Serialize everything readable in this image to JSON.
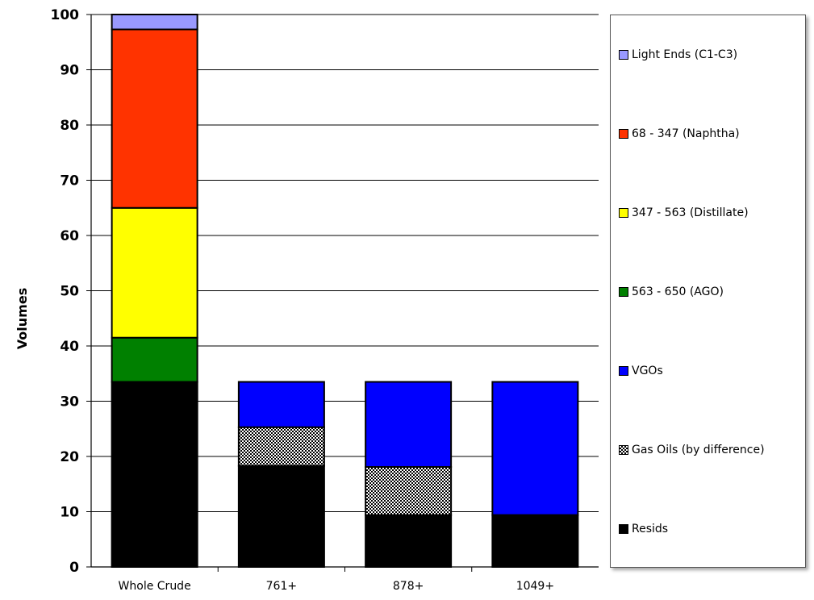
{
  "chart_data": {
    "type": "bar",
    "stacked": true,
    "categories": [
      "Whole Crude",
      "761+",
      "878+",
      "1049+"
    ],
    "ylabel": "Volumes",
    "xlabel": "",
    "ylim": [
      0,
      100
    ],
    "yticks": [
      0,
      10,
      20,
      30,
      40,
      50,
      60,
      70,
      80,
      90,
      100
    ],
    "grid": true,
    "legend_position": "right",
    "series": [
      {
        "name": "Resids",
        "color": "#000000",
        "pattern": "solid",
        "values": [
          33.5,
          18.3,
          9.4,
          9.4
        ]
      },
      {
        "name": "Gas Oils (by difference)",
        "color": "#000000",
        "pattern": "checker",
        "values": [
          0,
          7.0,
          8.7,
          0
        ]
      },
      {
        "name": "VGOs",
        "color": "#0000FF",
        "pattern": "solid",
        "values": [
          0,
          8.2,
          15.4,
          24.1
        ]
      },
      {
        "name": "563 - 650 (AGO)",
        "color": "#008000",
        "pattern": "solid",
        "values": [
          8.0,
          0,
          0,
          0
        ]
      },
      {
        "name": "347 - 563 (Distillate)",
        "color": "#FFFF00",
        "pattern": "solid",
        "values": [
          23.5,
          0,
          0,
          0
        ]
      },
      {
        "name": "68 - 347 (Naphtha)",
        "color": "#FF3300",
        "pattern": "solid",
        "values": [
          32.3,
          0,
          0,
          0
        ]
      },
      {
        "name": "Light Ends (C1-C3)",
        "color": "#9999FF",
        "pattern": "solid",
        "values": [
          2.7,
          0,
          0,
          0
        ]
      }
    ]
  }
}
